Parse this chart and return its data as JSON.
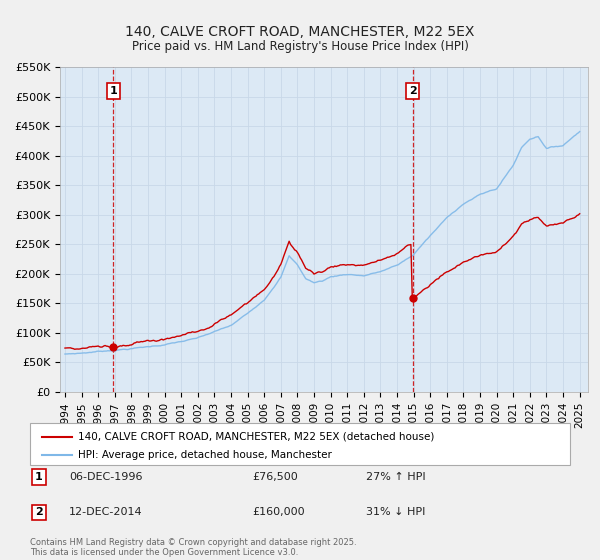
{
  "title": "140, CALVE CROFT ROAD, MANCHESTER, M22 5EX",
  "subtitle": "Price paid vs. HM Land Registry's House Price Index (HPI)",
  "ylim": [
    0,
    550000
  ],
  "yticks": [
    0,
    50000,
    100000,
    150000,
    200000,
    250000,
    300000,
    350000,
    400000,
    450000,
    500000,
    550000
  ],
  "ytick_labels": [
    "£0",
    "£50K",
    "£100K",
    "£150K",
    "£200K",
    "£250K",
    "£300K",
    "£350K",
    "£400K",
    "£450K",
    "£500K",
    "£550K"
  ],
  "xlim": [
    1993.7,
    2025.5
  ],
  "xticks": [
    1994,
    1995,
    1996,
    1997,
    1998,
    1999,
    2000,
    2001,
    2002,
    2003,
    2004,
    2005,
    2006,
    2007,
    2008,
    2009,
    2010,
    2011,
    2012,
    2013,
    2014,
    2015,
    2016,
    2017,
    2018,
    2019,
    2020,
    2021,
    2022,
    2023,
    2024,
    2025
  ],
  "title_color": "#222222",
  "grid_color": "#c8d8e8",
  "plot_bg_color": "#dce9f5",
  "fig_bg_color": "#f0f0f0",
  "red_line_color": "#cc0000",
  "blue_line_color": "#7fb8e8",
  "vline_color": "#cc0000",
  "marker1_x": 1996.92,
  "marker1_y": 76500,
  "marker2_x": 2014.95,
  "marker2_y": 160000,
  "legend_line1": "140, CALVE CROFT ROAD, MANCHESTER, M22 5EX (detached house)",
  "legend_line2": "HPI: Average price, detached house, Manchester",
  "annotation1_label": "1",
  "annotation1_date": "06-DEC-1996",
  "annotation1_price": "£76,500",
  "annotation1_hpi": "27% ↑ HPI",
  "annotation2_label": "2",
  "annotation2_date": "12-DEC-2014",
  "annotation2_price": "£160,000",
  "annotation2_hpi": "31% ↓ HPI",
  "footer": "Contains HM Land Registry data © Crown copyright and database right 2025.\nThis data is licensed under the Open Government Licence v3.0."
}
